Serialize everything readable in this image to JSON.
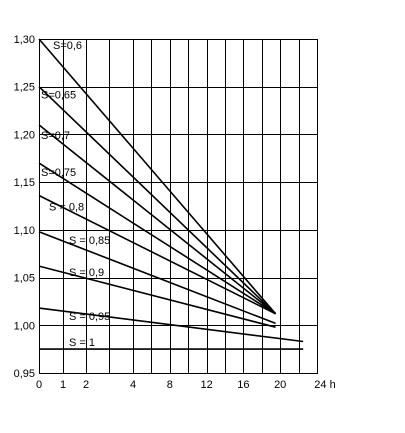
{
  "chart_data": {
    "type": "line",
    "title": "",
    "xlabel": "",
    "ylabel": "",
    "x_unit_label": "24 h",
    "xlim": [
      0,
      24
    ],
    "ylim": [
      0.95,
      1.3
    ],
    "grid": true,
    "x_gridlines": [
      0,
      1,
      2,
      3,
      4,
      6,
      8,
      10,
      12,
      14,
      16,
      18,
      20,
      22
    ],
    "y_gridlines": [
      0.95,
      1.0,
      1.05,
      1.1,
      1.15,
      1.2,
      1.25,
      1.3
    ],
    "x_ticks": [
      {
        "value": 0,
        "label": "0"
      },
      {
        "value": 1,
        "label": "1"
      },
      {
        "value": 2,
        "label": "2"
      },
      {
        "value": 4,
        "label": "4"
      },
      {
        "value": 8,
        "label": "8"
      },
      {
        "value": 12,
        "label": "12"
      },
      {
        "value": 16,
        "label": "16"
      },
      {
        "value": 20,
        "label": "20"
      },
      {
        "value": 24,
        "label": "24 h"
      }
    ],
    "y_ticks": [
      {
        "value": 0.95,
        "label": "0,95"
      },
      {
        "value": 1.0,
        "label": "1,00"
      },
      {
        "value": 1.05,
        "label": "1,05"
      },
      {
        "value": 1.1,
        "label": "1,10"
      },
      {
        "value": 1.15,
        "label": "1,15"
      },
      {
        "value": 1.2,
        "label": "1,20"
      },
      {
        "value": 1.25,
        "label": "1,25"
      },
      {
        "value": 1.3,
        "label": "1,30"
      }
    ],
    "series": [
      {
        "name": "S=0,6",
        "x": [
          0,
          19.5
        ],
        "y": [
          1.3,
          1.012
        ]
      },
      {
        "name": "S=0,65",
        "x": [
          0,
          19.5
        ],
        "y": [
          1.25,
          1.012
        ]
      },
      {
        "name": "S=0,7",
        "x": [
          0,
          19.5
        ],
        "y": [
          1.21,
          1.012
        ]
      },
      {
        "name": "S=0,75",
        "x": [
          0,
          19.5
        ],
        "y": [
          1.17,
          1.012
        ]
      },
      {
        "name": "S = 0,8",
        "x": [
          0,
          19.5
        ],
        "y": [
          1.136,
          1.012
        ]
      },
      {
        "name": "S = 0,85",
        "x": [
          0,
          19.5
        ],
        "y": [
          1.098,
          1.002
        ]
      },
      {
        "name": "S = 0,9",
        "x": [
          0,
          19.5
        ],
        "y": [
          1.062,
          0.998
        ]
      },
      {
        "name": "S = 0,95",
        "x": [
          0,
          22.5
        ],
        "y": [
          1.018,
          0.983
        ]
      },
      {
        "name": "S = 1",
        "x": [
          0,
          22.5
        ],
        "y": [
          0.975,
          0.975
        ]
      }
    ]
  }
}
